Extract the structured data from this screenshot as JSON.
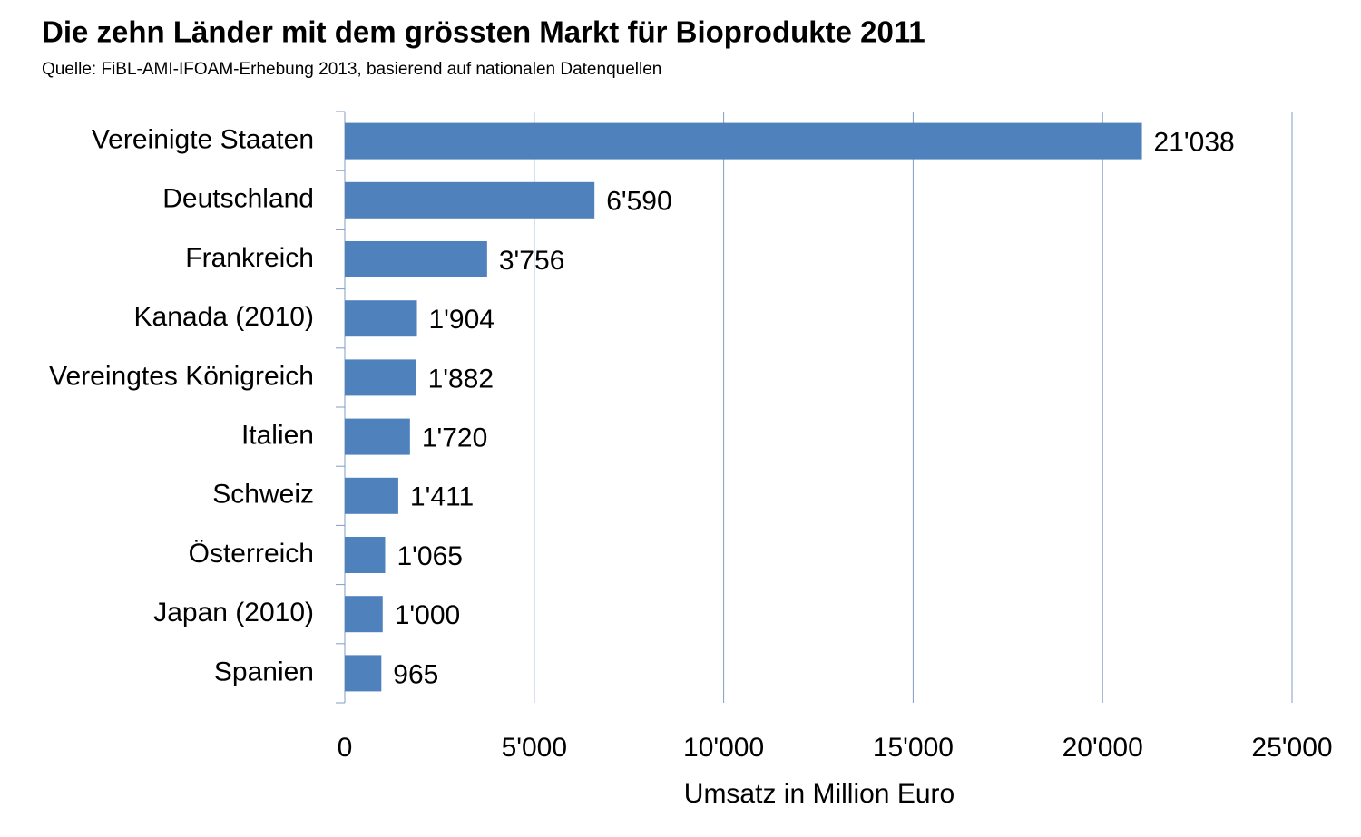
{
  "chart_data": {
    "type": "bar",
    "orientation": "horizontal",
    "title": "Die zehn Länder mit dem grössten Markt für Bioprodukte 2011",
    "subtitle": "Quelle: FiBL-AMI-IFOAM-Erhebung 2013, basierend auf nationalen Datenquellen",
    "x_label": "Umsatz in Million Euro",
    "categories": [
      "Vereinigte Staaten",
      "Deutschland",
      "Frankreich",
      "Kanada (2010)",
      "Vereingtes Königreich",
      "Italien",
      "Schweiz",
      "Österreich",
      "Japan (2010)",
      "Spanien"
    ],
    "values": [
      21038,
      6590,
      3756,
      1904,
      1882,
      1720,
      1411,
      1065,
      1000,
      965
    ],
    "value_labels": [
      "21'038",
      "6'590",
      "3'756",
      "1'904",
      "1'882",
      "1'720",
      "1'411",
      "1'065",
      "1'000",
      "965"
    ],
    "color": "#4f81bd",
    "xlim": [
      0,
      25000
    ],
    "xticks": [
      0,
      {
        "value": 5000,
        "label": "5'000"
      },
      {
        "value": 10000,
        "label": "10'000"
      },
      {
        "value": 15000,
        "label": "15'000"
      },
      {
        "value": 20000,
        "label": "20'000"
      },
      {
        "value": 25000,
        "label": "25'000"
      }
    ],
    "grid": true
  }
}
